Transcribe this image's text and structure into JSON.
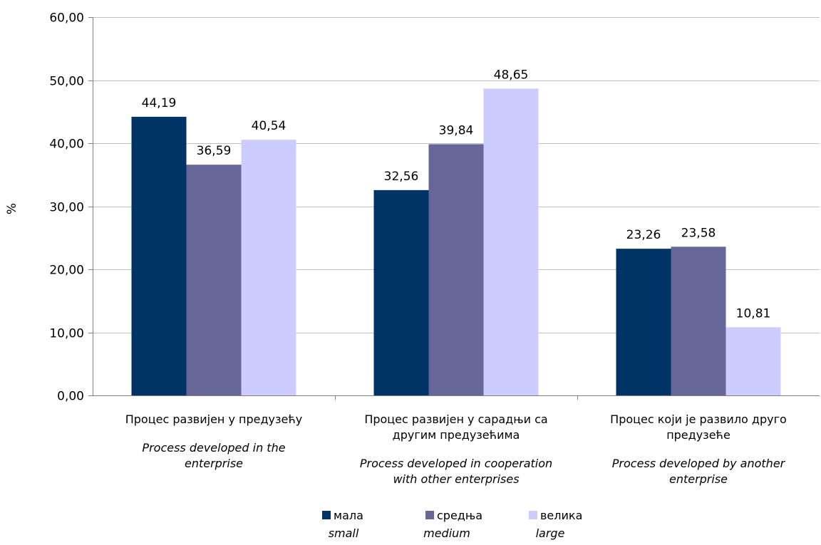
{
  "chart_data": {
    "type": "bar",
    "ylabel": "%",
    "ylim": [
      0,
      60
    ],
    "yticks": [
      "0,00",
      "10,00",
      "20,00",
      "30,00",
      "40,00",
      "50,00",
      "60,00"
    ],
    "grid": true,
    "legend_position": "bottom",
    "categories": [
      {
        "label_sr": [
          "Процес развијен у предузећу"
        ],
        "label_en": [
          "Process developed in the",
          "enterprise"
        ]
      },
      {
        "label_sr": [
          "Процес развијен у сарадњи са",
          "другим предузећима"
        ],
        "label_en": [
          "Process developed in cooperation",
          "with other enterprises"
        ]
      },
      {
        "label_sr": [
          "Процес који је развило друго",
          "предузеће"
        ],
        "label_en": [
          "Process developed by another",
          "enterprise"
        ]
      }
    ],
    "series": [
      {
        "name": "мала",
        "name_en": "small",
        "color": "#003366",
        "values": [
          44.19,
          32.56,
          23.26
        ],
        "labels": [
          "44,19",
          "32,56",
          "23,26"
        ]
      },
      {
        "name": "средња",
        "name_en": "medium",
        "color": "#666699",
        "values": [
          36.59,
          39.84,
          23.58
        ],
        "labels": [
          "36,59",
          "39,84",
          "23,58"
        ]
      },
      {
        "name": "велика",
        "name_en": "large",
        "color": "#ccccff",
        "values": [
          40.54,
          48.65,
          10.81
        ],
        "labels": [
          "40,54",
          "48,65",
          "10,81"
        ]
      }
    ]
  }
}
